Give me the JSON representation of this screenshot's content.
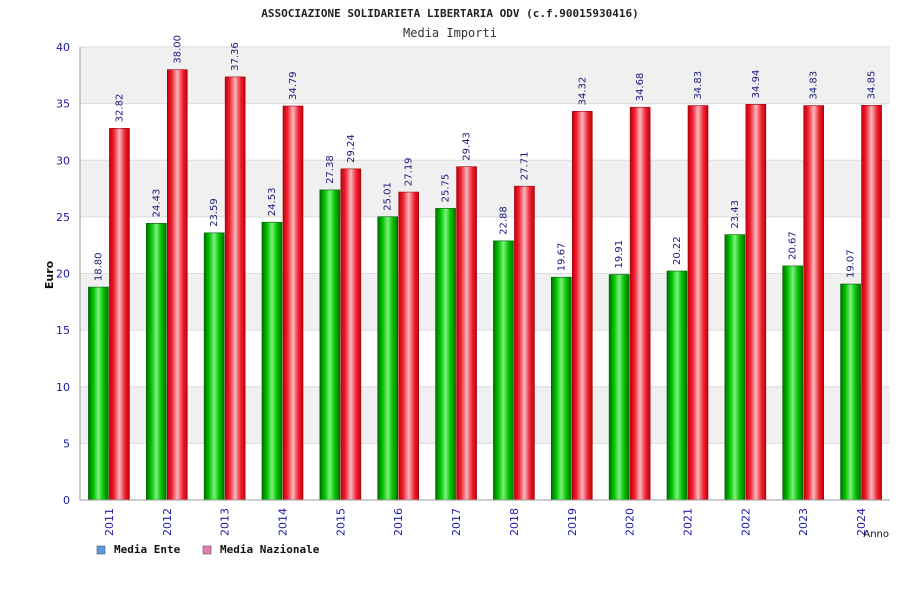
{
  "chart_data": {
    "type": "bar",
    "title": "ASSOCIAZIONE SOLIDARIETA LIBERTARIA ODV (c.f.90015930416)",
    "subtitle": "Media Importi",
    "xlabel": "Anno",
    "ylabel": "Euro",
    "ylim": [
      0,
      40
    ],
    "yticks": [
      "0",
      "5",
      "10",
      "15",
      "20",
      "25",
      "30",
      "35",
      "40"
    ],
    "categories": [
      "2011",
      "2012",
      "2013",
      "2014",
      "2015",
      "2016",
      "2017",
      "2018",
      "2019",
      "2020",
      "2021",
      "2022",
      "2023",
      "2024"
    ],
    "series": [
      {
        "name": "Media Ente",
        "color": "#00b000",
        "legend_color": "#5a9be6",
        "values": [
          18.8,
          24.43,
          23.59,
          24.53,
          27.38,
          25.01,
          25.75,
          22.88,
          19.67,
          19.91,
          20.22,
          23.43,
          20.67,
          19.07
        ],
        "labels": [
          "18.80",
          "24.43",
          "23.59",
          "24.53",
          "27.38",
          "25.01",
          "25.75",
          "22.88",
          "19.67",
          "19.91",
          "20.22",
          "23.43",
          "20.67",
          "19.07"
        ]
      },
      {
        "name": "Media Nazionale",
        "color": "#e8101c",
        "legend_color": "#e07fb0",
        "values": [
          32.82,
          38.0,
          37.36,
          34.79,
          29.24,
          27.19,
          29.43,
          27.71,
          34.32,
          34.68,
          34.83,
          34.94,
          34.83,
          34.85
        ],
        "labels": [
          "32.82",
          "38.00",
          "37.36",
          "34.79",
          "29.24",
          "27.19",
          "29.43",
          "27.71",
          "34.32",
          "34.68",
          "34.83",
          "34.94",
          "34.83",
          "34.85"
        ]
      }
    ],
    "grid": true,
    "legend": "bottom-left"
  }
}
